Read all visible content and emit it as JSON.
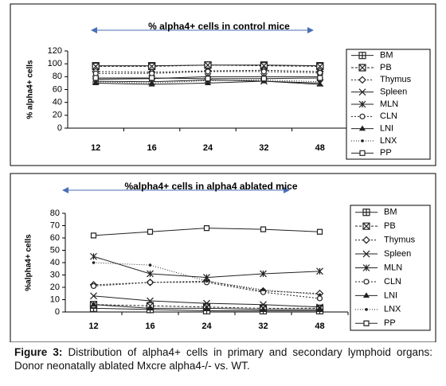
{
  "chart_data": [
    {
      "type": "line",
      "title": "% alpha4+ cells in control mice",
      "y_label": "% alpha4+ cells",
      "categories": [
        "12",
        "16",
        "24",
        "32",
        "48"
      ],
      "ylim": [
        0,
        120
      ],
      "yticks": [
        0,
        20,
        40,
        60,
        80,
        100,
        120
      ],
      "series": [
        {
          "name": "BM",
          "color": "#222222",
          "values": [
            97,
            97,
            98,
            98,
            97
          ]
        },
        {
          "name": "PB",
          "color": "#222222",
          "values": [
            96,
            96,
            98,
            97,
            96
          ]
        },
        {
          "name": "Thymus",
          "color": "#222222",
          "values": [
            88,
            87,
            89,
            90,
            88
          ]
        },
        {
          "name": "Spleen",
          "color": "#222222",
          "values": [
            73,
            72,
            75,
            73,
            70
          ]
        },
        {
          "name": "MLN",
          "color": "#222222",
          "values": [
            76,
            77,
            80,
            80,
            80
          ]
        },
        {
          "name": "CLN",
          "color": "#222222",
          "values": [
            85,
            85,
            88,
            88,
            86
          ]
        },
        {
          "name": "LNI",
          "color": "#222222",
          "values": [
            70,
            68,
            70,
            73,
            68
          ]
        },
        {
          "name": "LNX",
          "color": "#222222",
          "values": [
            72,
            70,
            74,
            75,
            72
          ]
        },
        {
          "name": "PP",
          "color": "#222222",
          "values": [
            78,
            78,
            77,
            77,
            78
          ]
        }
      ]
    },
    {
      "type": "line",
      "title": "%alpha4+ cells in alpha4 ablated mice",
      "y_label": "%alpha4+ cells",
      "categories": [
        "12",
        "16",
        "24",
        "32",
        "48"
      ],
      "ylim": [
        0,
        80
      ],
      "yticks": [
        0,
        10,
        20,
        30,
        40,
        50,
        60,
        70,
        80
      ],
      "series": [
        {
          "name": "BM",
          "color": "#222222",
          "values": [
            3,
            2,
            1,
            1,
            1
          ]
        },
        {
          "name": "PB",
          "color": "#222222",
          "values": [
            6,
            5,
            4,
            3,
            3
          ]
        },
        {
          "name": "Thymus",
          "color": "#222222",
          "values": [
            22,
            24,
            25,
            17,
            15
          ]
        },
        {
          "name": "Spleen",
          "color": "#222222",
          "values": [
            13,
            9,
            7,
            6,
            4
          ]
        },
        {
          "name": "MLN",
          "color": "#222222",
          "values": [
            45,
            31,
            28,
            31,
            33
          ]
        },
        {
          "name": "CLN",
          "color": "#222222",
          "values": [
            21,
            24,
            24,
            16,
            11
          ]
        },
        {
          "name": "LNI",
          "color": "#222222",
          "values": [
            6,
            3,
            3,
            2,
            2
          ]
        },
        {
          "name": "LNX",
          "color": "#222222",
          "values": [
            40,
            38,
            25,
            18,
            14
          ]
        },
        {
          "name": "PP",
          "color": "#222222",
          "values": [
            62,
            65,
            68,
            67,
            65
          ]
        }
      ]
    }
  ],
  "caption": {
    "label": "Figure 3:",
    "text": "Distribution of alpha4+ cells in primary and secondary lymphoid organs: Donor neonatally ablated Mxcre alpha4-/- vs. WT."
  }
}
